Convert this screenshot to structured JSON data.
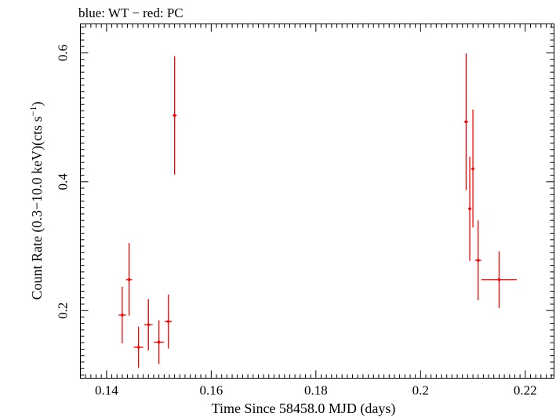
{
  "chart_data": {
    "type": "scatter",
    "title": "blue: WT − red: PC",
    "xlabel": "Time Since 58458.0 MJD (days)",
    "ylabel": "Count Rate (0.3−10.0 keV)(cts s",
    "ylabel_sup": "−1",
    "ylabel_close": ")",
    "xlim": [
      0.135,
      0.2255
    ],
    "ylim": [
      0.095,
      0.645
    ],
    "x_ticks": [
      0.14,
      0.16,
      0.18,
      0.2,
      0.22
    ],
    "y_ticks": [
      0.2,
      0.4,
      0.6
    ],
    "x_tick_labels": [
      "0.14",
      "0.16",
      "0.18",
      "0.2",
      "0.22"
    ],
    "y_tick_labels": [
      "0.2",
      "0.4",
      "0.6"
    ],
    "grid": false,
    "series": [
      {
        "name": "PC",
        "color": "#ff0000",
        "points": [
          {
            "x": 0.143,
            "y": 0.193,
            "xerr": 0.0007,
            "ylo": 0.149,
            "yhi": 0.237
          },
          {
            "x": 0.1443,
            "y": 0.248,
            "xerr": 0.0006,
            "ylo": 0.192,
            "yhi": 0.305
          },
          {
            "x": 0.1461,
            "y": 0.143,
            "xerr": 0.0009,
            "ylo": 0.111,
            "yhi": 0.175
          },
          {
            "x": 0.148,
            "y": 0.178,
            "xerr": 0.0008,
            "ylo": 0.138,
            "yhi": 0.218
          },
          {
            "x": 0.15,
            "y": 0.151,
            "xerr": 0.001,
            "ylo": 0.117,
            "yhi": 0.185
          },
          {
            "x": 0.1518,
            "y": 0.183,
            "xerr": 0.0007,
            "ylo": 0.141,
            "yhi": 0.225
          },
          {
            "x": 0.153,
            "y": 0.503,
            "xerr": 0.0004,
            "ylo": 0.411,
            "yhi": 0.595
          },
          {
            "x": 0.2087,
            "y": 0.493,
            "xerr": 0.0004,
            "ylo": 0.387,
            "yhi": 0.599
          },
          {
            "x": 0.2094,
            "y": 0.358,
            "xerr": 0.0003,
            "ylo": 0.277,
            "yhi": 0.439
          },
          {
            "x": 0.21,
            "y": 0.42,
            "xerr": 0.0003,
            "ylo": 0.329,
            "yhi": 0.512
          },
          {
            "x": 0.211,
            "y": 0.278,
            "xerr": 0.0006,
            "ylo": 0.216,
            "yhi": 0.34
          },
          {
            "x": 0.215,
            "y": 0.248,
            "xerr": 0.0034,
            "ylo": 0.204,
            "yhi": 0.292
          }
        ]
      }
    ]
  }
}
